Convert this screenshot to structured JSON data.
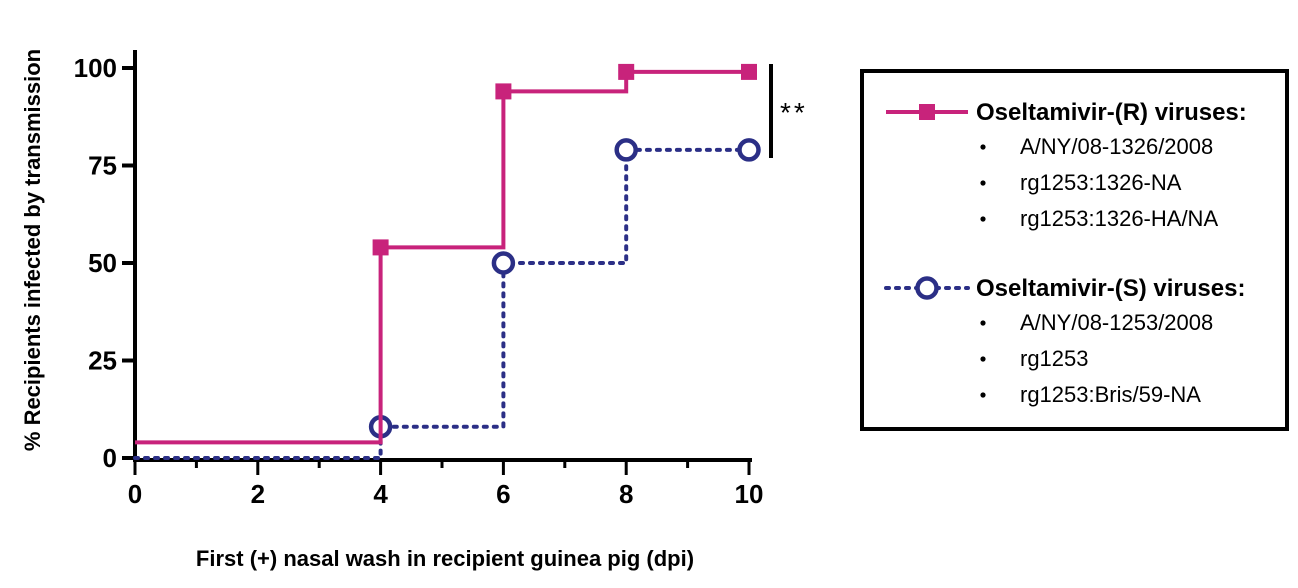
{
  "chart_data": {
    "type": "line",
    "step": true,
    "xlabel": "First (+) nasal wash in recipient  guinea pig (dpi)",
    "ylabel": "% Recipients infected by transmission",
    "xlim": [
      0,
      10
    ],
    "ylim": [
      0,
      100
    ],
    "x_ticks": [
      "0",
      "2",
      "4",
      "6",
      "8",
      "10"
    ],
    "y_ticks": [
      "0",
      "25",
      "50",
      "75",
      "100"
    ],
    "significance": "**",
    "series": [
      {
        "name": "Oseltamivir-(R) viruses:",
        "color": "#c8237b",
        "line_style": "solid",
        "marker": "filled-square",
        "strains": [
          "A/NY/08-1326/2008",
          "rg1253:1326-NA",
          "rg1253:1326-HA/NA"
        ],
        "step_points": [
          [
            0,
            4
          ],
          [
            4,
            4
          ],
          [
            4,
            54
          ],
          [
            6,
            54
          ],
          [
            6,
            94
          ],
          [
            8,
            94
          ],
          [
            8,
            99
          ],
          [
            10,
            99
          ]
        ],
        "markers": [
          [
            4,
            54
          ],
          [
            6,
            94
          ],
          [
            8,
            99
          ],
          [
            10,
            99
          ]
        ]
      },
      {
        "name": "Oseltamivir-(S) viruses:",
        "color": "#2b2f86",
        "line_style": "dotted",
        "marker": "open-circle",
        "strains": [
          "A/NY/08-1253/2008",
          "rg1253",
          "rg1253:Bris/59-NA"
        ],
        "step_points": [
          [
            0,
            0
          ],
          [
            4,
            0
          ],
          [
            4,
            8
          ],
          [
            6,
            8
          ],
          [
            6,
            50
          ],
          [
            8,
            50
          ],
          [
            8,
            79
          ],
          [
            10,
            79
          ]
        ],
        "markers": [
          [
            4,
            8
          ],
          [
            6,
            50
          ],
          [
            8,
            79
          ],
          [
            10,
            79
          ]
        ]
      }
    ],
    "legend_position": "right"
  }
}
